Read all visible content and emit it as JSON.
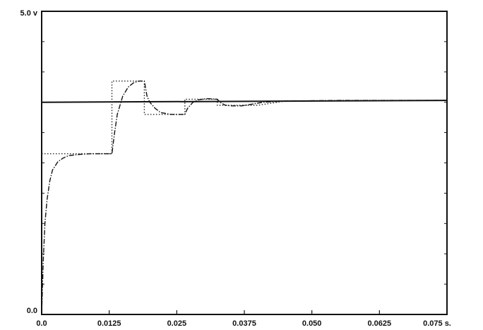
{
  "chart_data": {
    "type": "line",
    "title": "",
    "xlabel": "",
    "ylabel": "",
    "xlim": [
      0,
      0.075
    ],
    "ylim": [
      0,
      5.0
    ],
    "grid": false,
    "legend": "none",
    "x_ticks": [
      0,
      0.0125,
      0.025,
      0.0375,
      0.05,
      0.0625,
      0.075
    ],
    "x_tick_labels": [
      "0.0",
      "0.0125",
      "0.025",
      "0.0375",
      "0.050",
      "0.0625",
      "0.075 s."
    ],
    "y_ticks": [
      0,
      5.0
    ],
    "y_tick_labels": [
      "0.0",
      "5.0 v"
    ],
    "series": [
      {
        "style": "solid-thick",
        "x": [
          0,
          0.075
        ],
        "y": [
          3.5,
          3.53
        ]
      },
      {
        "style": "dotted",
        "x": [
          0,
          0.0045,
          0.0045,
          0.013,
          0.013,
          0.019,
          0.019,
          0.0265,
          0.0265,
          0.0325,
          0.0325,
          0.04,
          0.045,
          0.075
        ],
        "y": [
          2.65,
          2.65,
          2.65,
          2.65,
          3.85,
          3.85,
          3.3,
          3.3,
          3.55,
          3.55,
          3.45,
          3.45,
          3.52,
          3.53
        ]
      },
      {
        "style": "dash-dot",
        "x": [
          0,
          0.0003,
          0.0006,
          0.001,
          0.0015,
          0.002,
          0.003,
          0.004,
          0.005,
          0.007,
          0.009,
          0.013,
          0.0135,
          0.014,
          0.015,
          0.016,
          0.017,
          0.018,
          0.019,
          0.0195,
          0.02,
          0.021,
          0.022,
          0.024,
          0.0265,
          0.027,
          0.028,
          0.029,
          0.0305,
          0.0325,
          0.033,
          0.034,
          0.035,
          0.037,
          0.039,
          0.041,
          0.045,
          0.055,
          0.075
        ],
        "y": [
          0,
          0.9,
          1.5,
          1.9,
          2.2,
          2.38,
          2.52,
          2.58,
          2.62,
          2.64,
          2.65,
          2.65,
          3.0,
          3.3,
          3.6,
          3.75,
          3.82,
          3.85,
          3.85,
          3.6,
          3.5,
          3.4,
          3.33,
          3.3,
          3.3,
          3.4,
          3.5,
          3.54,
          3.56,
          3.55,
          3.5,
          3.45,
          3.44,
          3.44,
          3.47,
          3.5,
          3.52,
          3.53,
          3.53
        ]
      }
    ]
  }
}
